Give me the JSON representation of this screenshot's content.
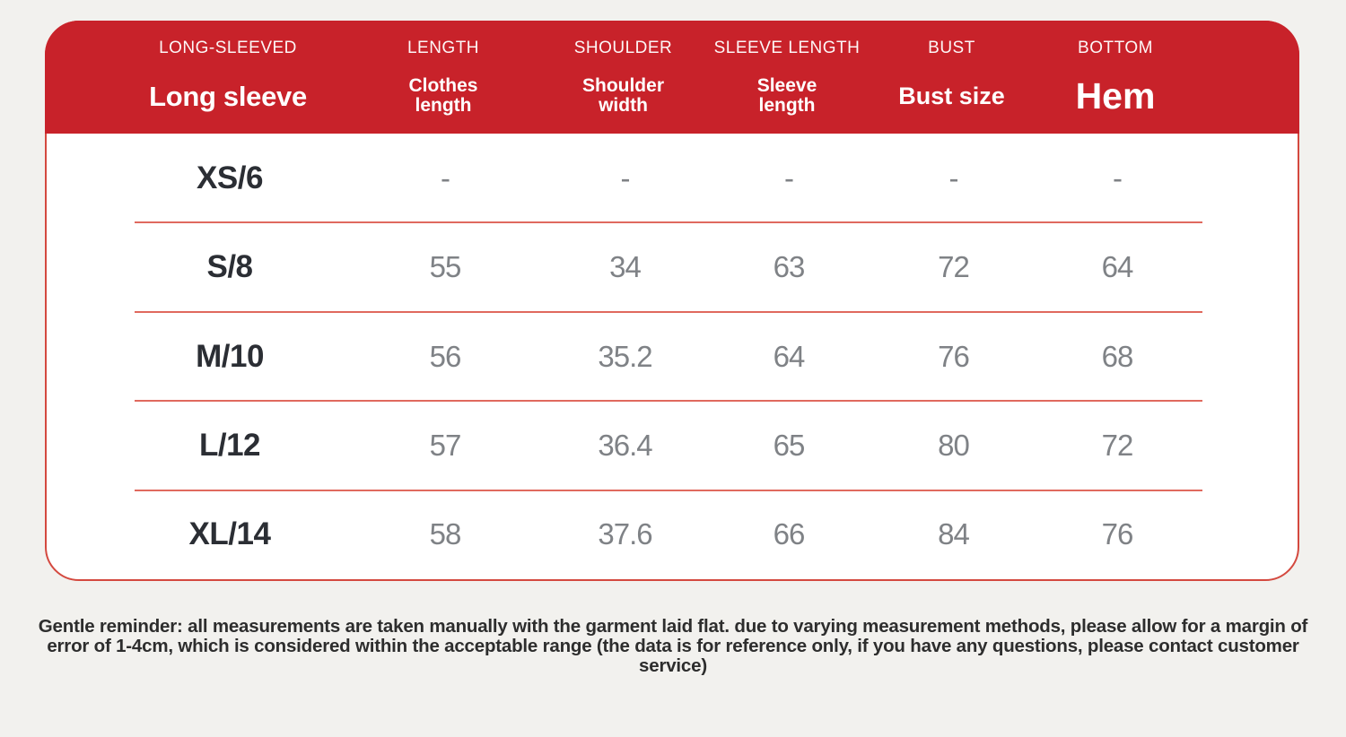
{
  "theme": {
    "page_bg": "#f2f1ee",
    "header_red": "#c8222a",
    "card_border_red": "#d4493f",
    "separator_red": "#e0695e",
    "size_label_color": "#2b2e34",
    "value_color": "#7f8286",
    "footer_color": "#2d2d2d"
  },
  "header": {
    "columns": [
      {
        "eyebrow": "LONG-SLEEVED",
        "label": "Long sleeve"
      },
      {
        "eyebrow": "LENGTH",
        "label": "Clothes length"
      },
      {
        "eyebrow": "SHOULDER",
        "label": "Shoulder width"
      },
      {
        "eyebrow": "SLEEVE LENGTH",
        "label": "Sleeve length"
      },
      {
        "eyebrow": "BUST",
        "label": "Bust size"
      },
      {
        "eyebrow": "BOTTOM",
        "label": "Hem"
      }
    ]
  },
  "chart_data": {
    "type": "table",
    "columns": [
      "Long sleeve",
      "Clothes length",
      "Shoulder width",
      "Sleeve length",
      "Bust size",
      "Hem"
    ],
    "rows": [
      [
        "XS/6",
        "-",
        "-",
        "-",
        "-",
        "-"
      ],
      [
        "S/8",
        "55",
        "34",
        "63",
        "72",
        "64"
      ],
      [
        "M/10",
        "56",
        "35.2",
        "64",
        "76",
        "68"
      ],
      [
        "L/12",
        "57",
        "36.4",
        "65",
        "80",
        "72"
      ],
      [
        "XL/14",
        "58",
        "37.6",
        "66",
        "84",
        "76"
      ]
    ],
    "notes": "Size chart for a long-sleeved garment; measurements in cm; XS/6 row has no data (dashes)."
  },
  "footer": {
    "text": "Gentle reminder: all measurements are taken manually with the garment laid flat. due to varying measurement methods, please allow for a margin of error of 1-4cm, which is considered within the acceptable range (the data is for reference only, if you have any questions, please contact customer service)"
  }
}
